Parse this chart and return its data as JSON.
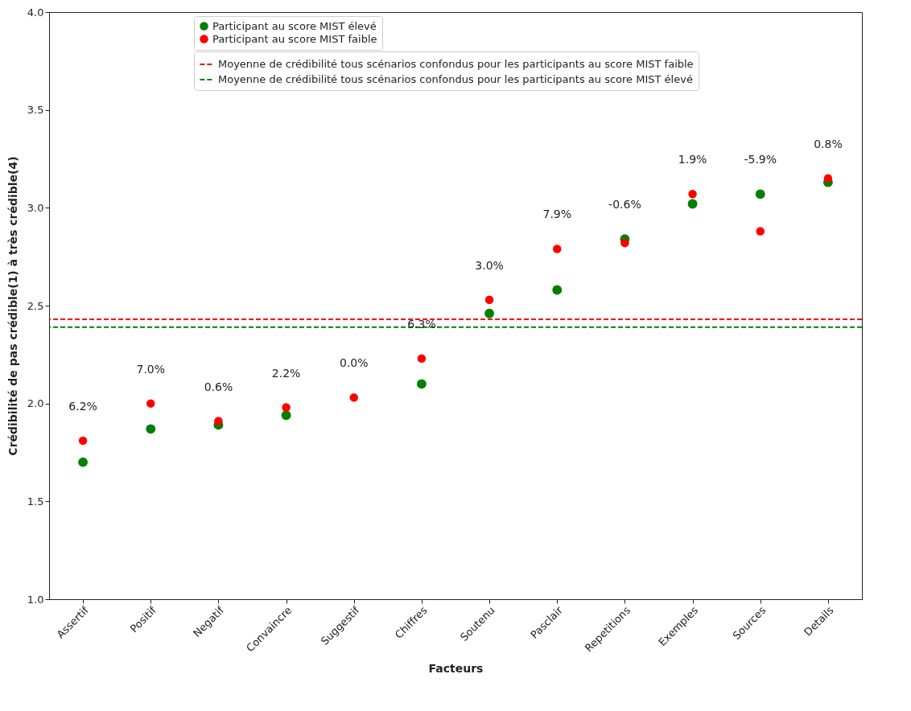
{
  "chart_data": {
    "type": "scatter",
    "xlabel": "Facteurs",
    "ylabel": "Crédibilité de pas crédible(1) à très crédible(4)",
    "categories": [
      "Assertif",
      "Positif",
      "Negatif",
      "Convaincre",
      "Suggestif",
      "Chiffres",
      "Soutenu",
      "Pasclair",
      "Repetitions",
      "Exemples",
      "Sources",
      "Details"
    ],
    "series": [
      {
        "name": "Participant au score MIST élevé",
        "color": "#008000",
        "values": [
          1.7,
          1.87,
          1.89,
          1.94,
          null,
          2.1,
          2.46,
          2.58,
          2.84,
          3.02,
          3.07,
          3.13
        ]
      },
      {
        "name": "Participant au score MIST faible",
        "color": "#ff0000",
        "values": [
          1.81,
          2.0,
          1.91,
          1.98,
          2.03,
          2.23,
          2.53,
          2.79,
          2.82,
          3.07,
          2.88,
          3.15
        ]
      }
    ],
    "ref_lines": [
      {
        "axis": "y",
        "value": 2.43,
        "label": "Moyenne de crédibilité tous scénarios confondus pour les participants au score MIST faible",
        "color": "#ff0000",
        "line_style": "dashed"
      },
      {
        "axis": "y",
        "value": 2.39,
        "label": "Moyenne de crédibilité tous scénarios confondus pour les participants au score MIST élevé",
        "color": "#008000",
        "line_style": "dashed"
      }
    ],
    "annotations": [
      {
        "text": "6.2%",
        "x": "Assertif",
        "y": 1.81
      },
      {
        "text": "7.0%",
        "x": "Positif",
        "y": 2.0
      },
      {
        "text": "0.6%",
        "x": "Negatif",
        "y": 1.91
      },
      {
        "text": "2.2%",
        "x": "Convaincre",
        "y": 1.98
      },
      {
        "text": "0.0%",
        "x": "Suggestif",
        "y": 2.03
      },
      {
        "text": "6.3%",
        "x": "Chiffres",
        "y": 2.23
      },
      {
        "text": "3.0%",
        "x": "Soutenu",
        "y": 2.53
      },
      {
        "text": "7.9%",
        "x": "Pasclair",
        "y": 2.79
      },
      {
        "text": "-0.6%",
        "x": "Repetitions",
        "y": 2.84
      },
      {
        "text": "1.9%",
        "x": "Exemples",
        "y": 3.07
      },
      {
        "text": "-5.9%",
        "x": "Sources",
        "y": 3.07
      },
      {
        "text": "0.8%",
        "x": "Details",
        "y": 3.15
      }
    ],
    "ylim": [
      1.0,
      4.0
    ],
    "yticks": [
      {
        "value": 1.0,
        "label": "1.0"
      },
      {
        "value": 1.5,
        "label": "1.5"
      },
      {
        "value": 2.0,
        "label": "2.0"
      },
      {
        "value": 2.5,
        "label": "2.5"
      },
      {
        "value": 3.0,
        "label": "3.0"
      },
      {
        "value": 3.5,
        "label": "3.5"
      },
      {
        "value": 4.0,
        "label": "4.0"
      }
    ],
    "grid": false,
    "legend": "top right",
    "marker": "circle"
  }
}
